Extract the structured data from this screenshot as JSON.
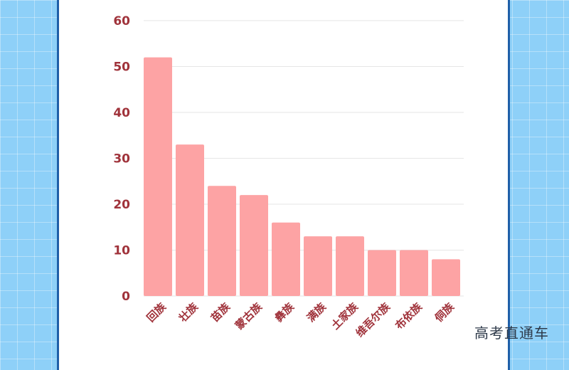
{
  "watermark": "高考直通车",
  "colors": {
    "bar": "#fda3a4",
    "text": "#a0333b",
    "grid": "#e6e6e6",
    "frame": "#1f5fa8"
  },
  "chart_data": {
    "type": "bar",
    "categories": [
      "回族",
      "壮族",
      "苗族",
      "蒙古族",
      "彝族",
      "满族",
      "土家族",
      "维吾尔族",
      "布依族",
      "侗族"
    ],
    "values": [
      52,
      33,
      24,
      22,
      16,
      13,
      13,
      10,
      10,
      8
    ],
    "ylim": [
      0,
      60
    ],
    "yticks": [
      0,
      10,
      20,
      30,
      40,
      50,
      60
    ],
    "grid": true
  }
}
